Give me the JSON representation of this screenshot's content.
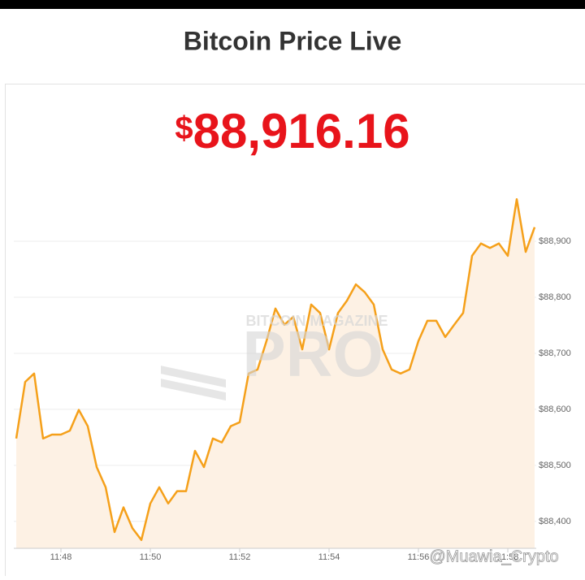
{
  "chart_data": {
    "type": "line",
    "title": "Bitcoin Price Live",
    "currency": "$",
    "current_price": "88,916.16",
    "annotations": [
      "BITCOIN MAGAZINE",
      "PRO",
      "@Muawia_Crypto"
    ],
    "values": [
      88548,
      88649,
      88664,
      88548,
      88555,
      88555,
      88562,
      88599,
      88570,
      88497,
      88461,
      88381,
      88425,
      88388,
      88367,
      88432,
      88461,
      88432,
      88454,
      88454,
      88526,
      88497,
      88548,
      88541,
      88570,
      88577,
      88664,
      88671,
      88722,
      88780,
      88751,
      88765,
      88707,
      88787,
      88772,
      88707,
      88772,
      88794,
      88823,
      88809,
      88787,
      88707,
      88671,
      88664,
      88671,
      88722,
      88758,
      88758,
      88729,
      88751,
      88772,
      88874,
      88896,
      88888,
      88896,
      88874,
      88975,
      88881,
      88925
    ],
    "color": "#f5a01a",
    "fill_color": "#fdf1e4",
    "xlim": [
      0,
      58
    ],
    "xticks": [
      {
        "value": 5,
        "label": "11:48"
      },
      {
        "value": 15,
        "label": "11:50"
      },
      {
        "value": 25,
        "label": "11:52"
      },
      {
        "value": 35,
        "label": "11:54"
      },
      {
        "value": 45,
        "label": "11:56"
      },
      {
        "value": 55,
        "label": "11:58"
      }
    ],
    "ylim": [
      88352,
      89000
    ],
    "yticks": [
      {
        "value": 88400,
        "label": "$88,400"
      },
      {
        "value": 88500,
        "label": "$88,500"
      },
      {
        "value": 88600,
        "label": "$88,600"
      },
      {
        "value": 88700,
        "label": "$88,700"
      },
      {
        "value": 88800,
        "label": "$88,800"
      },
      {
        "value": 88900,
        "label": "$88,900"
      }
    ],
    "grid": true
  }
}
